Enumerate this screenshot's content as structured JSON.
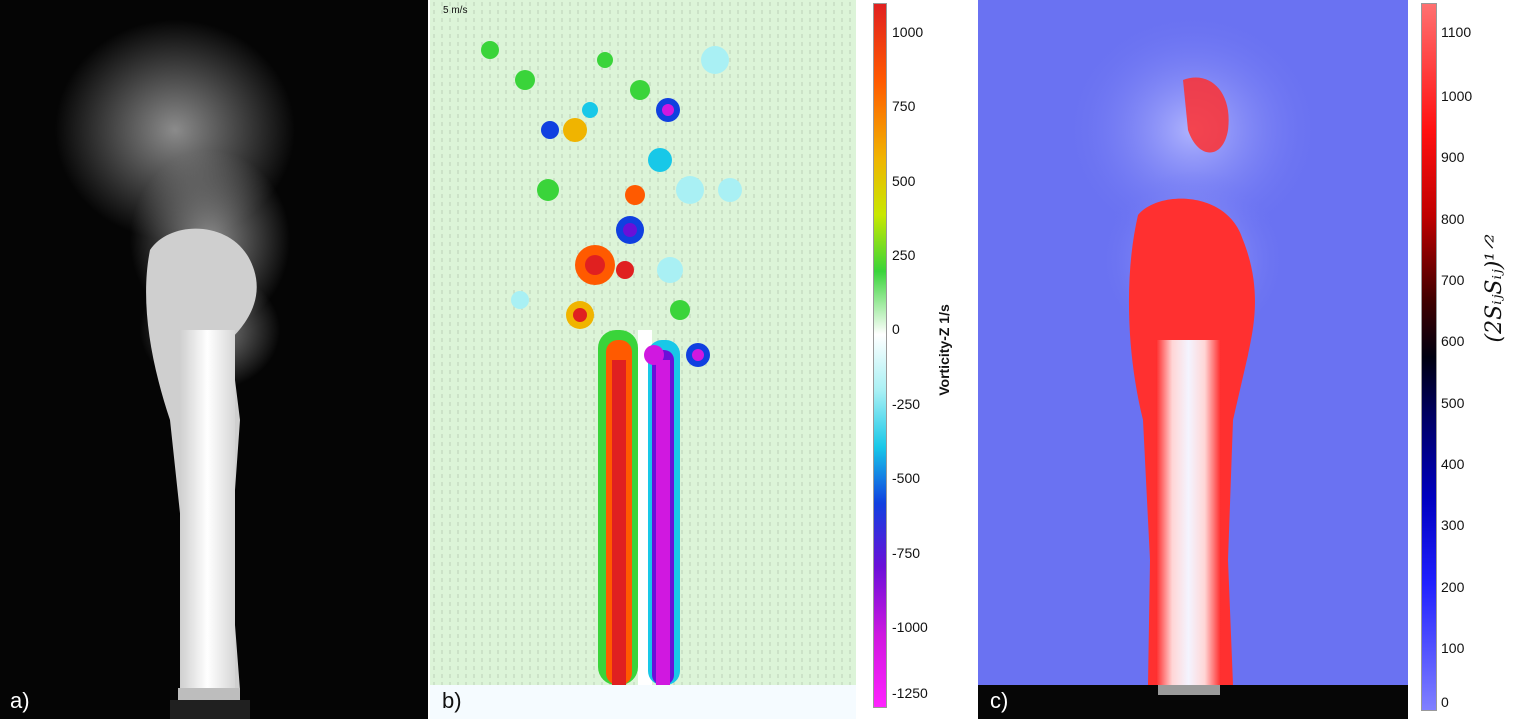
{
  "panels": {
    "a": {
      "label": "a)"
    },
    "b": {
      "label": "b)",
      "velocity_scale": "5 m/s"
    },
    "c": {
      "label": "c)"
    }
  },
  "colorbar_b": {
    "title": "Vorticity-Z 1/s",
    "ticks": [
      "1000",
      "750",
      "500",
      "250",
      "0",
      "-250",
      "-500",
      "-750",
      "-1000",
      "-1250"
    ],
    "colors": [
      "#e02020",
      "#ff5a00",
      "#f0b400",
      "#3ad43a",
      "#ffffff",
      "#18c8e8",
      "#1040e0",
      "#6a10d8",
      "#ff22ff"
    ]
  },
  "colorbar_c": {
    "title": "(2SᵢⱼSᵢⱼ)¹ᐟ²",
    "ticks": [
      "1100",
      "1000",
      "900",
      "800",
      "700",
      "600",
      "500",
      "400",
      "300",
      "200",
      "100",
      "0"
    ],
    "colors": [
      "#ff7070",
      "#ff1010",
      "#400000",
      "#000010",
      "#0000c0",
      "#8080ff"
    ]
  }
}
